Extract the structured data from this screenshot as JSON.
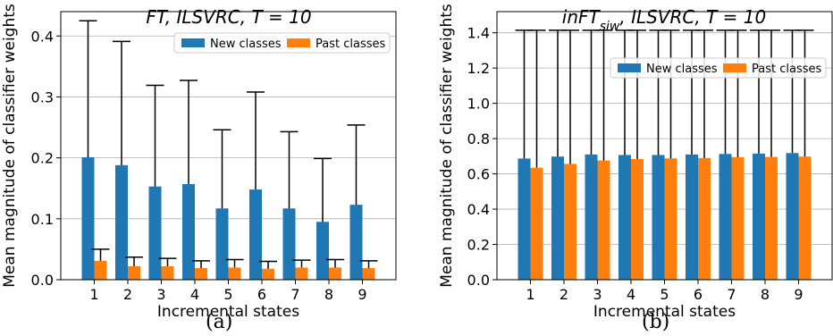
{
  "captions": [
    "(a)",
    "(b)"
  ],
  "chart_data": [
    {
      "type": "bar",
      "title": "FT, ILSVRC, T = 10",
      "xlabel": "Incremental states",
      "ylabel": "Mean magnitude of classifier weights",
      "categories": [
        "1",
        "2",
        "3",
        "4",
        "5",
        "6",
        "7",
        "8",
        "9"
      ],
      "ylim": [
        0,
        0.44
      ],
      "yticks": [
        "0.0",
        "0.1",
        "0.2",
        "0.3",
        "0.4"
      ],
      "ytick_values": [
        0.0,
        0.1,
        0.2,
        0.3,
        0.4
      ],
      "grid": "y",
      "legend": "top-right",
      "series": [
        {
          "name": "New classes",
          "color": "#1f77b4",
          "values": [
            0.201,
            0.188,
            0.153,
            0.157,
            0.117,
            0.148,
            0.117,
            0.095,
            0.123
          ],
          "error_upper": [
            0.425,
            0.391,
            0.319,
            0.327,
            0.246,
            0.308,
            0.243,
            0.199,
            0.254
          ]
        },
        {
          "name": "Past classes",
          "color": "#ff7f0e",
          "values": [
            0.031,
            0.022,
            0.022,
            0.019,
            0.02,
            0.018,
            0.02,
            0.02,
            0.019
          ],
          "error_upper": [
            0.05,
            0.037,
            0.035,
            0.031,
            0.033,
            0.03,
            0.032,
            0.033,
            0.031
          ]
        }
      ]
    },
    {
      "type": "bar",
      "title": "inFT_siw, ILSVRC, T = 10",
      "xlabel": "Incremental states",
      "ylabel": "Mean magnitude of classifier weights",
      "categories": [
        "1",
        "2",
        "3",
        "4",
        "5",
        "6",
        "7",
        "8",
        "9"
      ],
      "ylim": [
        0,
        1.52
      ],
      "yticks": [
        "0.0",
        "0.2",
        "0.4",
        "0.6",
        "0.8",
        "1.0",
        "1.2",
        "1.4"
      ],
      "ytick_values": [
        0.0,
        0.2,
        0.4,
        0.6,
        0.8,
        1.0,
        1.2,
        1.4
      ],
      "grid": "y",
      "legend": "top-right",
      "series": [
        {
          "name": "New classes",
          "color": "#1f77b4",
          "values": [
            0.687,
            0.698,
            0.71,
            0.707,
            0.707,
            0.71,
            0.713,
            0.715,
            0.718
          ],
          "error_upper": [
            1.414,
            1.414,
            1.414,
            1.414,
            1.414,
            1.414,
            1.414,
            1.414,
            1.414
          ]
        },
        {
          "name": "Past classes",
          "color": "#ff7f0e",
          "values": [
            0.635,
            0.657,
            0.676,
            0.684,
            0.688,
            0.69,
            0.695,
            0.696,
            0.698
          ],
          "error_upper": [
            1.414,
            1.414,
            1.414,
            1.414,
            1.414,
            1.414,
            1.414,
            1.414,
            1.414
          ]
        }
      ]
    }
  ]
}
